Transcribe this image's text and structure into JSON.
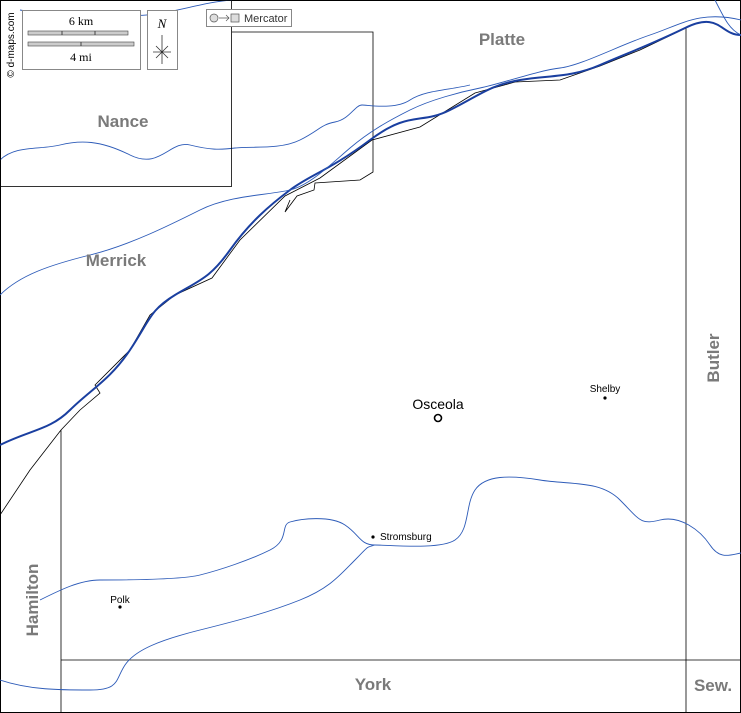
{
  "scale": {
    "km": "6 km",
    "mi": "4 mi"
  },
  "north": "N",
  "projection": "Mercator",
  "credit": "© d-maps.com",
  "counties": {
    "platte": "Platte",
    "nance": "Nance",
    "merrick": "Merrick",
    "butler": "Butler",
    "hamilton": "Hamilton",
    "york": "York",
    "seward": "Sew."
  },
  "places": {
    "seat": "Osceola",
    "shelby": "Shelby",
    "stromsburg": "Stromsburg",
    "polk": "Polk"
  }
}
